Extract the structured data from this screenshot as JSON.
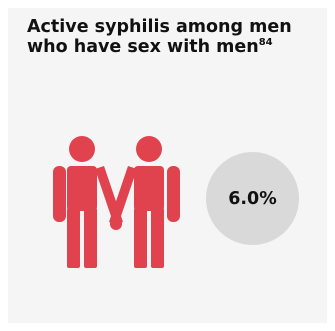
{
  "card": {
    "title": "Active syphilis among men who have sex with men",
    "reference": "84"
  },
  "icon": {
    "name": "two-men-holding-hands-icon",
    "color": "#e0434d"
  },
  "stat": {
    "value": "6.0%",
    "circle_color": "#d9d9d9"
  }
}
